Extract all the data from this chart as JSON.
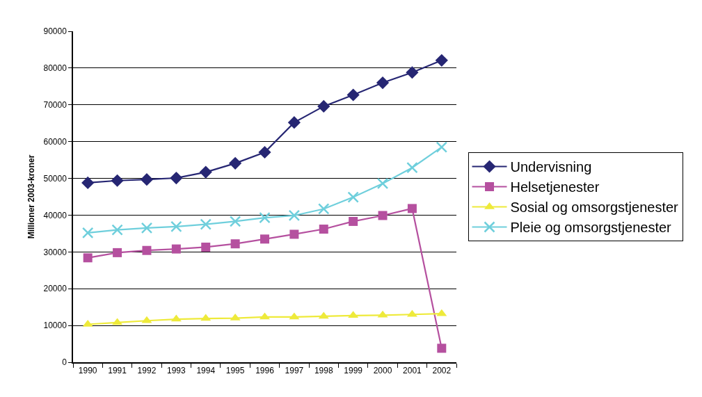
{
  "chart_data": {
    "type": "line",
    "ylabel": "Millioner 2003-kroner",
    "categories": [
      "1990",
      "1991",
      "1992",
      "1993",
      "1994",
      "1995",
      "1996",
      "1997",
      "1998",
      "1999",
      "2000",
      "2001",
      "2002"
    ],
    "ylim": [
      0,
      90000
    ],
    "yticks": [
      0,
      10000,
      20000,
      30000,
      40000,
      50000,
      60000,
      70000,
      80000,
      90000
    ],
    "grid": "y",
    "legend": "right",
    "line_style": "solid",
    "series": [
      {
        "name": "Undervisning",
        "color": "#262673",
        "marker": "diamond",
        "values": [
          48800,
          49400,
          49700,
          50100,
          51700,
          54100,
          57100,
          65200,
          69600,
          72700,
          76000,
          78800,
          82100
        ]
      },
      {
        "name": "Helsetjenester",
        "color": "#b5509f",
        "marker": "square",
        "values": [
          28400,
          29800,
          30400,
          30800,
          31300,
          32200,
          33500,
          34800,
          36200,
          38300,
          39900,
          41800,
          3800
        ]
      },
      {
        "name": "Sosial og omsorgstjenester",
        "color": "#eeea3a",
        "marker": "triangle",
        "values": [
          10300,
          10800,
          11300,
          11700,
          11900,
          12000,
          12300,
          12300,
          12500,
          12700,
          12800,
          13000,
          13200
        ]
      },
      {
        "name": "Pleie og omsorgstjenester",
        "color": "#6fcfdc",
        "marker": "cross",
        "values": [
          35200,
          36000,
          36500,
          36900,
          37500,
          38300,
          39300,
          39900,
          41700,
          44900,
          48600,
          52900,
          58500
        ]
      }
    ]
  }
}
